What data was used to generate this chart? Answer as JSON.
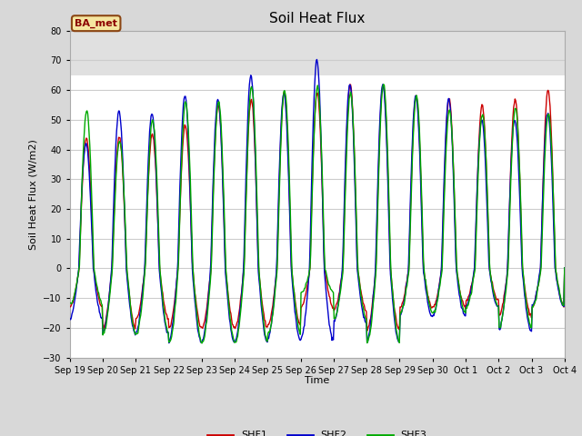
{
  "title": "Soil Heat Flux",
  "ylabel": "Soil Heat Flux (W/m2)",
  "xlabel": "Time",
  "ylim": [
    -30,
    80
  ],
  "yticks": [
    -30,
    -20,
    -10,
    0,
    10,
    20,
    30,
    40,
    50,
    60,
    70,
    80
  ],
  "shade_region": [
    65,
    80
  ],
  "annotation_text": "BA_met",
  "line_colors": [
    "#cc0000",
    "#0000cc",
    "#00aa00"
  ],
  "line_labels": [
    "SHF1",
    "SHF2",
    "SHF3"
  ],
  "line_width": 1.0,
  "xtick_labels": [
    "Sep 19",
    "Sep 20",
    "Sep 21",
    "Sep 22",
    "Sep 23",
    "Sep 24",
    "Sep 25",
    "Sep 26",
    "Sep 27",
    "Sep 28",
    "Sep 29",
    "Sep 30",
    "Oct 1",
    "Oct 2",
    "Oct 3",
    "Oct 4"
  ],
  "background_color": "#d8d8d8",
  "plot_bg_color": "#ffffff",
  "grid_color": "#cccccc",
  "shade_color": "#e0e0e0",
  "n_days": 15,
  "peaks_shf1": [
    44,
    44,
    45,
    48,
    55,
    57,
    59,
    59,
    62,
    62,
    58,
    57,
    55,
    57,
    60
  ],
  "peaks_shf2": [
    42,
    53,
    52,
    58,
    57,
    65,
    59,
    70,
    62,
    62,
    58,
    57,
    50,
    50,
    52
  ],
  "peaks_shf3": [
    53,
    43,
    50,
    56,
    56,
    61,
    60,
    61,
    59,
    62,
    58,
    53,
    52,
    54,
    52
  ],
  "troughs_shf1": [
    -13,
    -20,
    -17,
    -20,
    -20,
    -20,
    -19,
    -13,
    -14,
    -21,
    -13,
    -13,
    -11,
    -16,
    -13
  ],
  "troughs_shf2": [
    -17,
    -22,
    -22,
    -25,
    -25,
    -25,
    -24,
    -24,
    -18,
    -25,
    -16,
    -16,
    -13,
    -21,
    -13
  ],
  "troughs_shf3": [
    -12,
    -22,
    -22,
    -25,
    -25,
    -25,
    -22,
    -8,
    -17,
    -25,
    -15,
    -15,
    -13,
    -20,
    -13
  ]
}
